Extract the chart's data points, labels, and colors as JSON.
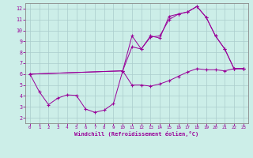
{
  "xlabel": "Windchill (Refroidissement éolien,°C)",
  "background_color": "#cceee8",
  "grid_color": "#aacccc",
  "line_color": "#990099",
  "spine_color": "#888888",
  "xlim": [
    -0.5,
    23.5
  ],
  "ylim": [
    1.5,
    12.5
  ],
  "xticks": [
    0,
    1,
    2,
    3,
    4,
    5,
    6,
    7,
    8,
    9,
    10,
    11,
    12,
    13,
    14,
    15,
    16,
    17,
    18,
    19,
    20,
    21,
    22,
    23
  ],
  "yticks": [
    2,
    3,
    4,
    5,
    6,
    7,
    8,
    9,
    10,
    11,
    12
  ],
  "series1": [
    [
      0,
      6.0
    ],
    [
      1,
      4.4
    ],
    [
      2,
      3.2
    ],
    [
      3,
      3.8
    ],
    [
      4,
      4.1
    ],
    [
      5,
      4.05
    ],
    [
      6,
      2.8
    ],
    [
      7,
      2.5
    ],
    [
      8,
      2.7
    ],
    [
      9,
      3.3
    ],
    [
      10,
      6.3
    ],
    [
      11,
      5.0
    ],
    [
      12,
      5.0
    ],
    [
      13,
      4.9
    ],
    [
      14,
      5.1
    ],
    [
      15,
      5.4
    ],
    [
      16,
      5.8
    ],
    [
      17,
      6.2
    ],
    [
      18,
      6.5
    ],
    [
      19,
      6.4
    ],
    [
      20,
      6.4
    ],
    [
      21,
      6.3
    ],
    [
      22,
      6.5
    ],
    [
      23,
      6.5
    ]
  ],
  "series2": [
    [
      0,
      6.0
    ],
    [
      10,
      6.3
    ],
    [
      11,
      9.5
    ],
    [
      12,
      8.3
    ],
    [
      13,
      9.4
    ],
    [
      14,
      9.5
    ],
    [
      15,
      11.0
    ],
    [
      16,
      11.5
    ],
    [
      17,
      11.7
    ],
    [
      18,
      12.2
    ],
    [
      19,
      11.2
    ],
    [
      20,
      9.5
    ],
    [
      21,
      8.3
    ],
    [
      22,
      6.5
    ],
    [
      23,
      6.5
    ]
  ],
  "series3": [
    [
      0,
      6.0
    ],
    [
      10,
      6.3
    ],
    [
      11,
      8.5
    ],
    [
      12,
      8.3
    ],
    [
      13,
      9.5
    ],
    [
      14,
      9.3
    ],
    [
      15,
      11.3
    ],
    [
      16,
      11.5
    ],
    [
      17,
      11.7
    ],
    [
      18,
      12.2
    ],
    [
      19,
      11.2
    ],
    [
      20,
      9.5
    ],
    [
      21,
      8.3
    ],
    [
      22,
      6.5
    ],
    [
      23,
      6.5
    ]
  ]
}
